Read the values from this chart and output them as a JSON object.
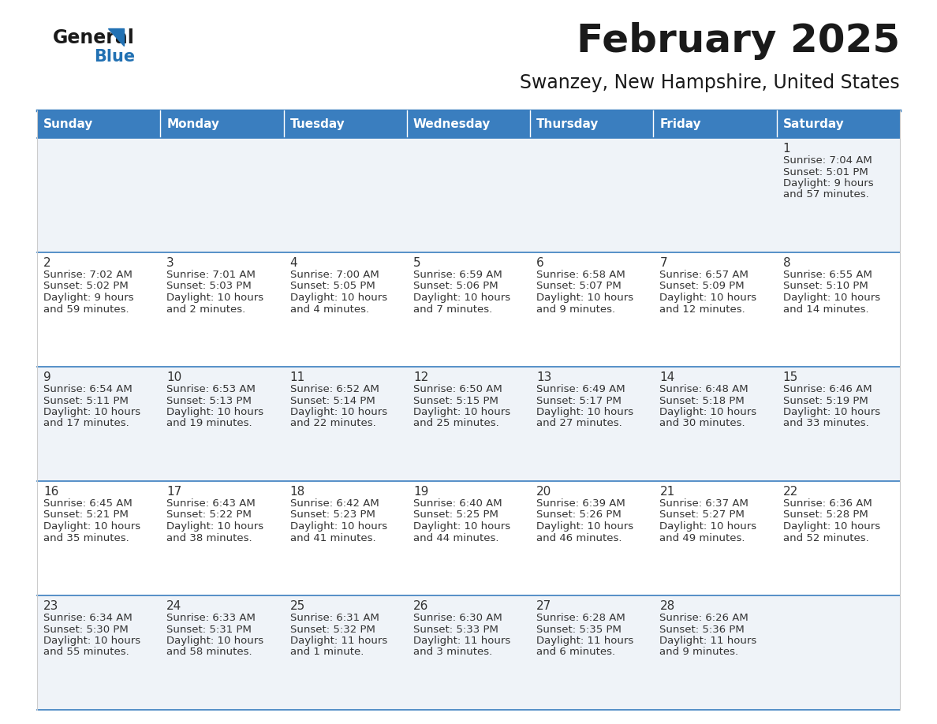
{
  "title": "February 2025",
  "subtitle": "Swanzey, New Hampshire, United States",
  "days_of_week": [
    "Sunday",
    "Monday",
    "Tuesday",
    "Wednesday",
    "Thursday",
    "Friday",
    "Saturday"
  ],
  "header_bg": "#3a7ebf",
  "header_text": "#ffffff",
  "row_bg_light": "#eff3f8",
  "row_bg_white": "#ffffff",
  "border_color": "#3a7ebf",
  "day_number_color": "#333333",
  "info_text_color": "#333333",
  "title_color": "#1a1a1a",
  "subtitle_color": "#1a1a1a",
  "logo_general_color": "#1a1a1a",
  "logo_blue_color": "#2271b3",
  "calendar_data": [
    [
      null,
      null,
      null,
      null,
      null,
      null,
      {
        "day": "1",
        "sunrise": "Sunrise: 7:04 AM",
        "sunset": "Sunset: 5:01 PM",
        "daylight": "Daylight: 9 hours",
        "daylight2": "and 57 minutes."
      }
    ],
    [
      {
        "day": "2",
        "sunrise": "Sunrise: 7:02 AM",
        "sunset": "Sunset: 5:02 PM",
        "daylight": "Daylight: 9 hours",
        "daylight2": "and 59 minutes."
      },
      {
        "day": "3",
        "sunrise": "Sunrise: 7:01 AM",
        "sunset": "Sunset: 5:03 PM",
        "daylight": "Daylight: 10 hours",
        "daylight2": "and 2 minutes."
      },
      {
        "day": "4",
        "sunrise": "Sunrise: 7:00 AM",
        "sunset": "Sunset: 5:05 PM",
        "daylight": "Daylight: 10 hours",
        "daylight2": "and 4 minutes."
      },
      {
        "day": "5",
        "sunrise": "Sunrise: 6:59 AM",
        "sunset": "Sunset: 5:06 PM",
        "daylight": "Daylight: 10 hours",
        "daylight2": "and 7 minutes."
      },
      {
        "day": "6",
        "sunrise": "Sunrise: 6:58 AM",
        "sunset": "Sunset: 5:07 PM",
        "daylight": "Daylight: 10 hours",
        "daylight2": "and 9 minutes."
      },
      {
        "day": "7",
        "sunrise": "Sunrise: 6:57 AM",
        "sunset": "Sunset: 5:09 PM",
        "daylight": "Daylight: 10 hours",
        "daylight2": "and 12 minutes."
      },
      {
        "day": "8",
        "sunrise": "Sunrise: 6:55 AM",
        "sunset": "Sunset: 5:10 PM",
        "daylight": "Daylight: 10 hours",
        "daylight2": "and 14 minutes."
      }
    ],
    [
      {
        "day": "9",
        "sunrise": "Sunrise: 6:54 AM",
        "sunset": "Sunset: 5:11 PM",
        "daylight": "Daylight: 10 hours",
        "daylight2": "and 17 minutes."
      },
      {
        "day": "10",
        "sunrise": "Sunrise: 6:53 AM",
        "sunset": "Sunset: 5:13 PM",
        "daylight": "Daylight: 10 hours",
        "daylight2": "and 19 minutes."
      },
      {
        "day": "11",
        "sunrise": "Sunrise: 6:52 AM",
        "sunset": "Sunset: 5:14 PM",
        "daylight": "Daylight: 10 hours",
        "daylight2": "and 22 minutes."
      },
      {
        "day": "12",
        "sunrise": "Sunrise: 6:50 AM",
        "sunset": "Sunset: 5:15 PM",
        "daylight": "Daylight: 10 hours",
        "daylight2": "and 25 minutes."
      },
      {
        "day": "13",
        "sunrise": "Sunrise: 6:49 AM",
        "sunset": "Sunset: 5:17 PM",
        "daylight": "Daylight: 10 hours",
        "daylight2": "and 27 minutes."
      },
      {
        "day": "14",
        "sunrise": "Sunrise: 6:48 AM",
        "sunset": "Sunset: 5:18 PM",
        "daylight": "Daylight: 10 hours",
        "daylight2": "and 30 minutes."
      },
      {
        "day": "15",
        "sunrise": "Sunrise: 6:46 AM",
        "sunset": "Sunset: 5:19 PM",
        "daylight": "Daylight: 10 hours",
        "daylight2": "and 33 minutes."
      }
    ],
    [
      {
        "day": "16",
        "sunrise": "Sunrise: 6:45 AM",
        "sunset": "Sunset: 5:21 PM",
        "daylight": "Daylight: 10 hours",
        "daylight2": "and 35 minutes."
      },
      {
        "day": "17",
        "sunrise": "Sunrise: 6:43 AM",
        "sunset": "Sunset: 5:22 PM",
        "daylight": "Daylight: 10 hours",
        "daylight2": "and 38 minutes."
      },
      {
        "day": "18",
        "sunrise": "Sunrise: 6:42 AM",
        "sunset": "Sunset: 5:23 PM",
        "daylight": "Daylight: 10 hours",
        "daylight2": "and 41 minutes."
      },
      {
        "day": "19",
        "sunrise": "Sunrise: 6:40 AM",
        "sunset": "Sunset: 5:25 PM",
        "daylight": "Daylight: 10 hours",
        "daylight2": "and 44 minutes."
      },
      {
        "day": "20",
        "sunrise": "Sunrise: 6:39 AM",
        "sunset": "Sunset: 5:26 PM",
        "daylight": "Daylight: 10 hours",
        "daylight2": "and 46 minutes."
      },
      {
        "day": "21",
        "sunrise": "Sunrise: 6:37 AM",
        "sunset": "Sunset: 5:27 PM",
        "daylight": "Daylight: 10 hours",
        "daylight2": "and 49 minutes."
      },
      {
        "day": "22",
        "sunrise": "Sunrise: 6:36 AM",
        "sunset": "Sunset: 5:28 PM",
        "daylight": "Daylight: 10 hours",
        "daylight2": "and 52 minutes."
      }
    ],
    [
      {
        "day": "23",
        "sunrise": "Sunrise: 6:34 AM",
        "sunset": "Sunset: 5:30 PM",
        "daylight": "Daylight: 10 hours",
        "daylight2": "and 55 minutes."
      },
      {
        "day": "24",
        "sunrise": "Sunrise: 6:33 AM",
        "sunset": "Sunset: 5:31 PM",
        "daylight": "Daylight: 10 hours",
        "daylight2": "and 58 minutes."
      },
      {
        "day": "25",
        "sunrise": "Sunrise: 6:31 AM",
        "sunset": "Sunset: 5:32 PM",
        "daylight": "Daylight: 11 hours",
        "daylight2": "and 1 minute."
      },
      {
        "day": "26",
        "sunrise": "Sunrise: 6:30 AM",
        "sunset": "Sunset: 5:33 PM",
        "daylight": "Daylight: 11 hours",
        "daylight2": "and 3 minutes."
      },
      {
        "day": "27",
        "sunrise": "Sunrise: 6:28 AM",
        "sunset": "Sunset: 5:35 PM",
        "daylight": "Daylight: 11 hours",
        "daylight2": "and 6 minutes."
      },
      {
        "day": "28",
        "sunrise": "Sunrise: 6:26 AM",
        "sunset": "Sunset: 5:36 PM",
        "daylight": "Daylight: 11 hours",
        "daylight2": "and 9 minutes."
      },
      null
    ]
  ],
  "figsize": [
    11.88,
    9.18
  ],
  "dpi": 100
}
